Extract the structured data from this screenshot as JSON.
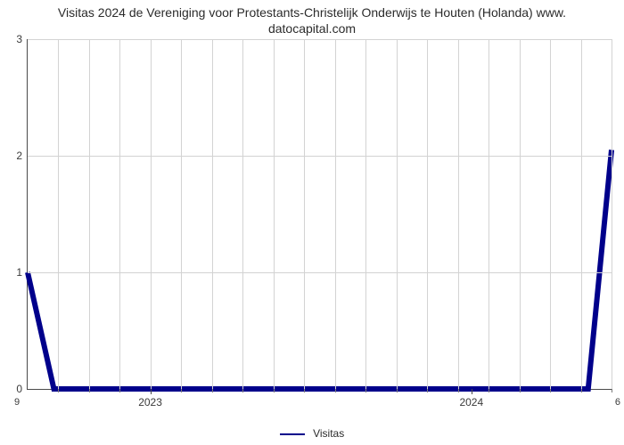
{
  "title_line_1": "Visitas 2024 de Vereniging voor Protestants-Christelijk Onderwijs te Houten (Holanda) www.",
  "title_line_2": "datocapital.com",
  "chart": {
    "type": "line",
    "background_color": "#ffffff",
    "grid_color": "#d3d3d3",
    "axis_color": "#4b4b4b",
    "title_fontsize": 14,
    "label_fontsize": 12,
    "ylim": [
      0,
      3
    ],
    "yticks": [
      0,
      1,
      2,
      3
    ],
    "x_minor_ticks_per_interval": 12,
    "x_major_labels": [
      "2023",
      "2024"
    ],
    "x_major_positions": [
      0.21,
      0.76
    ],
    "corner_left": "9",
    "corner_right": "6",
    "series": {
      "color": "#00008b",
      "width": 2,
      "points": [
        [
          0.0,
          1.0
        ],
        [
          0.045,
          0.0
        ],
        [
          0.96,
          0.0
        ],
        [
          1.0,
          2.05
        ]
      ]
    },
    "legend_label": "Visitas"
  }
}
